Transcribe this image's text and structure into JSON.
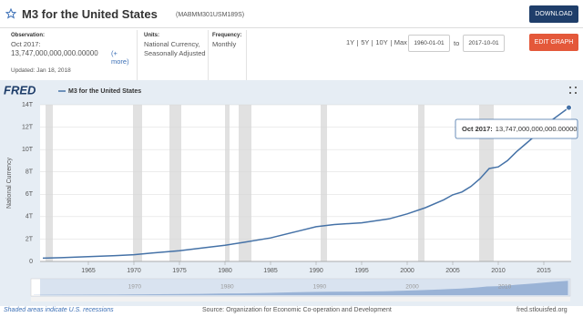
{
  "header": {
    "title": "M3 for the United States",
    "series_id": "(MABMM301USM189S)",
    "download": "DOWNLOAD",
    "edit_graph": "EDIT GRAPH"
  },
  "info": {
    "observation_label": "Observation:",
    "observation_date": "Oct 2017:",
    "observation_value": "13,747,000,000,000.00000",
    "more": "(+ more)",
    "updated": "Updated: Jan 18, 2018",
    "units_label": "Units:",
    "units": "National Currency, Seasonally Adjusted",
    "frequency_label": "Frequency:",
    "frequency": "Monthly"
  },
  "range": {
    "buttons": [
      "1Y",
      "5Y",
      "10Y",
      "Max"
    ],
    "start": "1960-01-01",
    "to": "to",
    "end": "2017-10-01"
  },
  "chart_data": {
    "type": "line",
    "logo": "FRED",
    "y_label": "National Currency",
    "x": [
      1960,
      1962,
      1965,
      1968,
      1970,
      1972,
      1975,
      1978,
      1980,
      1982,
      1985,
      1988,
      1990,
      1992,
      1995,
      1998,
      2000,
      2002,
      2004,
      2005,
      2006,
      2007,
      2008,
      2009,
      2010,
      2011,
      2012,
      2013,
      2014,
      2015,
      2016,
      2017.75
    ],
    "series": [
      {
        "name": "M3 for the United States",
        "color": "#4572a7",
        "values": [
          290000000000,
          330000000000,
          420000000000,
          520000000000,
          600000000000,
          750000000000,
          950000000000,
          1250000000000,
          1450000000000,
          1700000000000,
          2100000000000,
          2700000000000,
          3100000000000,
          3300000000000,
          3450000000000,
          3800000000000,
          4250000000000,
          4800000000000,
          5500000000000,
          5950000000000,
          6200000000000,
          6700000000000,
          7400000000000,
          8300000000000,
          8450000000000,
          9000000000000,
          9800000000000,
          10500000000000,
          11200000000000,
          11900000000000,
          12700000000000,
          13747000000000
        ]
      }
    ],
    "xlim": [
      1959.7,
      2018
    ],
    "xticks": [
      1965,
      1970,
      1975,
      1980,
      1985,
      1990,
      1995,
      2000,
      2005,
      2010,
      2015
    ],
    "ylim": [
      0,
      14000000000000
    ],
    "yticks": [
      0,
      {
        "value": 2000000000000,
        "label": "2T"
      },
      {
        "value": 4000000000000,
        "label": "4T"
      },
      {
        "value": 6000000000000,
        "label": "6T"
      },
      {
        "value": 8000000000000,
        "label": "8T"
      },
      {
        "value": 10000000000000,
        "label": "10T"
      },
      {
        "value": 12000000000000,
        "label": "12T"
      },
      {
        "value": 14000000000000,
        "label": "14T"
      }
    ],
    "grid": true,
    "recessions": [
      [
        1960.3,
        1961.1
      ],
      [
        1969.9,
        1970.9
      ],
      [
        1973.9,
        1975.2
      ],
      [
        1980.0,
        1980.5
      ],
      [
        1981.5,
        1982.9
      ],
      [
        1990.5,
        1991.2
      ],
      [
        2001.2,
        2001.9
      ],
      [
        2007.9,
        2009.5
      ]
    ],
    "navigator_ticks": [
      1970,
      1980,
      1990,
      2000,
      2010
    ],
    "recession_note": "Shaded areas indicate U.S. recessions",
    "source": "Source: Organization for Economic Co-operation and Development",
    "site": "fred.stlouisfed.org"
  }
}
